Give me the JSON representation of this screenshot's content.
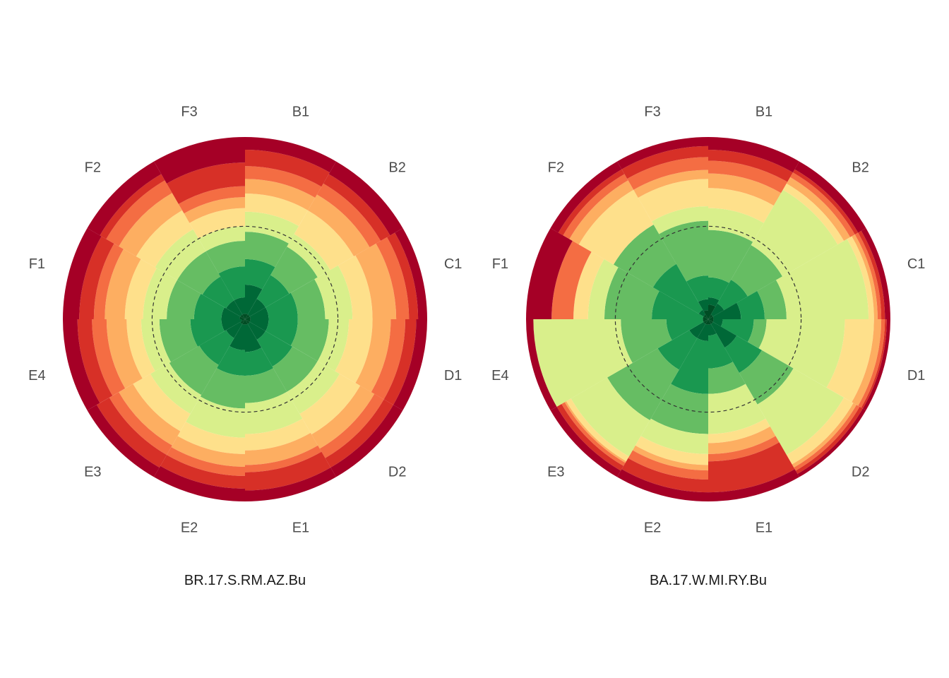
{
  "chart_data": [
    {
      "type": "polar-stacked-bar",
      "title": "BR.17.S.RM.AZ.Bu",
      "categories": [
        "B1",
        "B2",
        "C1",
        "D1",
        "D2",
        "E1",
        "E2",
        "E3",
        "E4",
        "F1",
        "F2",
        "F3"
      ],
      "level_colors": [
        "#004d24",
        "#006837",
        "#1a9850",
        "#66bd63",
        "#d9ef8b",
        "#fee08b",
        "#fdae61",
        "#f46d43",
        "#d73027",
        "#a50026"
      ],
      "grid": false,
      "legend": "none",
      "reference_circle": true,
      "stack_boundaries": [
        [
          0.3,
          1.9,
          3.3,
          4.8,
          5.9,
          6.9,
          7.7,
          8.4,
          9.3,
          10.0
        ],
        [
          0.3,
          1.3,
          2.8,
          4.6,
          5.4,
          6.9,
          7.9,
          8.6,
          9.2,
          10.0
        ],
        [
          0.3,
          1.3,
          2.9,
          4.4,
          5.9,
          7.0,
          8.3,
          9.0,
          9.5,
          10.0
        ],
        [
          0.3,
          1.3,
          2.9,
          4.6,
          5.7,
          7.0,
          8.0,
          8.8,
          9.4,
          10.0
        ],
        [
          0.3,
          1.3,
          3.0,
          4.6,
          6.0,
          7.3,
          8.2,
          8.8,
          9.4,
          10.0
        ],
        [
          0.3,
          1.8,
          3.1,
          4.6,
          6.3,
          7.2,
          8.0,
          8.4,
          9.4,
          10.0
        ],
        [
          0.3,
          1.7,
          3.1,
          4.9,
          6.5,
          7.4,
          8.1,
          8.6,
          9.3,
          10.0
        ],
        [
          0.3,
          1.2,
          2.9,
          4.8,
          6.0,
          7.1,
          8.0,
          8.6,
          9.4,
          10.0
        ],
        [
          0.2,
          1.3,
          3.0,
          4.7,
          5.7,
          6.5,
          7.6,
          8.4,
          9.2,
          10.0
        ],
        [
          0.3,
          1.3,
          2.8,
          4.3,
          5.6,
          6.6,
          7.7,
          8.3,
          9.1,
          10.0
        ],
        [
          0.3,
          1.2,
          2.7,
          4.3,
          5.7,
          6.9,
          8.0,
          8.8,
          9.2,
          10.0
        ],
        [
          0.3,
          1.2,
          2.9,
          4.3,
          5.1,
          6.1,
          6.7,
          7.3,
          8.6,
          10.0
        ]
      ],
      "reference_circle_value": 5.1
    },
    {
      "type": "polar-stacked-bar",
      "title": "BA.17.W.MI.RY.Bu",
      "categories": [
        "B1",
        "B2",
        "C1",
        "D1",
        "D2",
        "E1",
        "E2",
        "E3",
        "E4",
        "F1",
        "F2",
        "F3"
      ],
      "level_colors": [
        "#004d24",
        "#006837",
        "#1a9850",
        "#66bd63",
        "#d9ef8b",
        "#fee08b",
        "#fdae61",
        "#f46d43",
        "#d73027",
        "#a50026"
      ],
      "grid": false,
      "legend": "none",
      "reference_circle": true,
      "stack_boundaries": [
        [
          0.8,
          1.2,
          2.3,
          4.9,
          6.1,
          7.2,
          8.0,
          8.7,
          9.3,
          10.0
        ],
        [
          0.3,
          1.0,
          2.5,
          4.7,
          8.2,
          8.6,
          9.0,
          9.3,
          9.5,
          10.0
        ],
        [
          0.3,
          1.8,
          3.1,
          4.3,
          8.8,
          9.1,
          9.3,
          9.5,
          9.7,
          10.0
        ],
        [
          0.3,
          0.8,
          2.5,
          3.2,
          7.5,
          9.1,
          9.5,
          9.7,
          9.8,
          10.0
        ],
        [
          0.3,
          1.8,
          3.4,
          5.4,
          8.6,
          9.2,
          9.4,
          9.6,
          9.8,
          10.0
        ],
        [
          0.3,
          0.9,
          2.7,
          4.1,
          6.3,
          6.8,
          7.4,
          7.8,
          9.5,
          10.0
        ],
        [
          0.3,
          1.2,
          4.1,
          6.3,
          7.4,
          8.0,
          8.3,
          8.8,
          9.5,
          10.0
        ],
        [
          0.3,
          1.2,
          3.2,
          6.4,
          8.7,
          9.0,
          9.1,
          9.3,
          9.6,
          10.0
        ],
        [
          0.3,
          0.3,
          2.3,
          4.8,
          9.6,
          9.6,
          9.6,
          9.6,
          9.6,
          10.0
        ],
        [
          0.3,
          0.3,
          3.1,
          5.7,
          6.6,
          7.4,
          7.4,
          8.6,
          8.6,
          10.0
        ],
        [
          0.3,
          0.6,
          3.5,
          6.0,
          6.0,
          8.2,
          8.8,
          9.2,
          9.5,
          10.0
        ],
        [
          0.5,
          1.1,
          2.4,
          5.4,
          6.2,
          7.7,
          8.2,
          8.9,
          9.5,
          10.0
        ]
      ],
      "reference_circle_value": 5.1
    }
  ]
}
